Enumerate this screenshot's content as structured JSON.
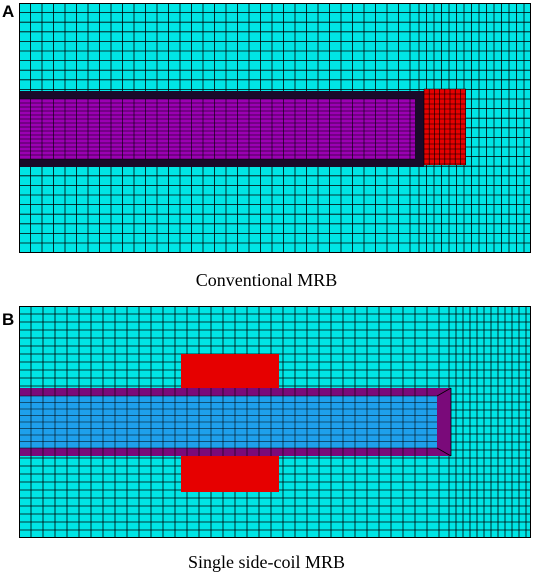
{
  "colors": {
    "background": "#00e5e5",
    "mesh_line": "#000000",
    "purple_region": "#9b00b3",
    "red_region": "#e60000",
    "blue_region": "#1ea0ec",
    "dark_magenta_layer": "#7a0a7a"
  },
  "panel_a": {
    "letter": "A",
    "caption": "Conventional MRB"
  },
  "panel_b": {
    "letter": "B",
    "caption": "Single side-coil MRB"
  }
}
